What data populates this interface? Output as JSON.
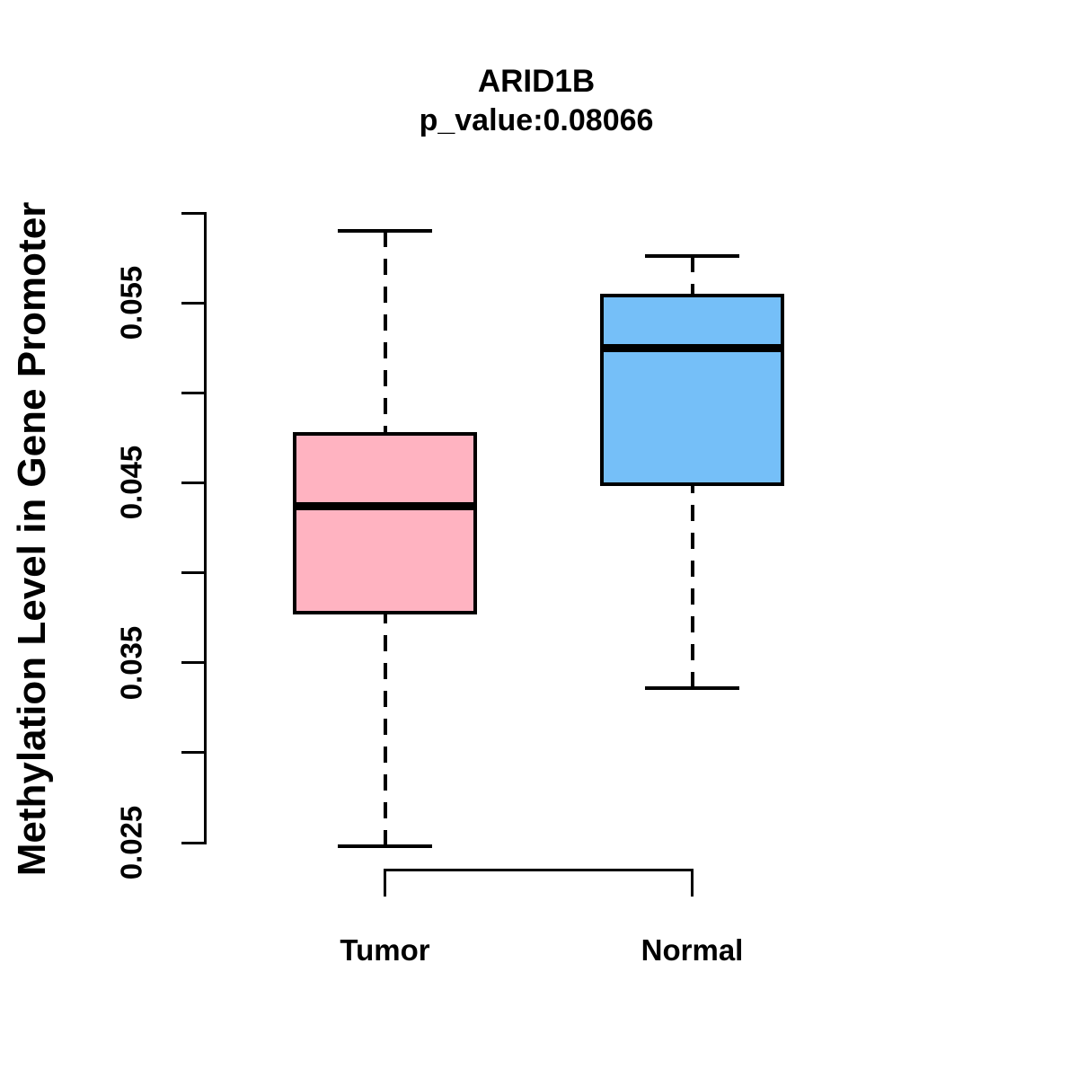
{
  "chart_data": {
    "type": "boxplot",
    "title": "ARID1B",
    "subtitle": "p_value:0.08066",
    "ylabel": "Methylation Level in Gene Promoter",
    "xlabel": "",
    "categories": [
      "Tumor",
      "Normal"
    ],
    "series": [
      {
        "name": "Tumor",
        "min": 0.0248,
        "q1": 0.0377,
        "median": 0.0437,
        "q3": 0.0478,
        "max": 0.059,
        "fill_color": "#FFB3C1"
      },
      {
        "name": "Normal",
        "min": 0.0336,
        "q1": 0.0448,
        "median": 0.0525,
        "q3": 0.0555,
        "max": 0.0576,
        "fill_color": "#75BFF8"
      }
    ],
    "y_axis": {
      "min": 0.025,
      "max": 0.06,
      "tick_step": 0.005,
      "labeled_ticks": [
        0.055,
        0.045,
        0.035,
        0.025
      ],
      "tick_labels": [
        "0.055",
        "0.045",
        "0.035",
        "0.025"
      ]
    },
    "style": {
      "stroke_color": "#000000",
      "background_color": "#FFFFFF",
      "whisker_style": "dashed",
      "legend": "none",
      "grid": false
    }
  }
}
